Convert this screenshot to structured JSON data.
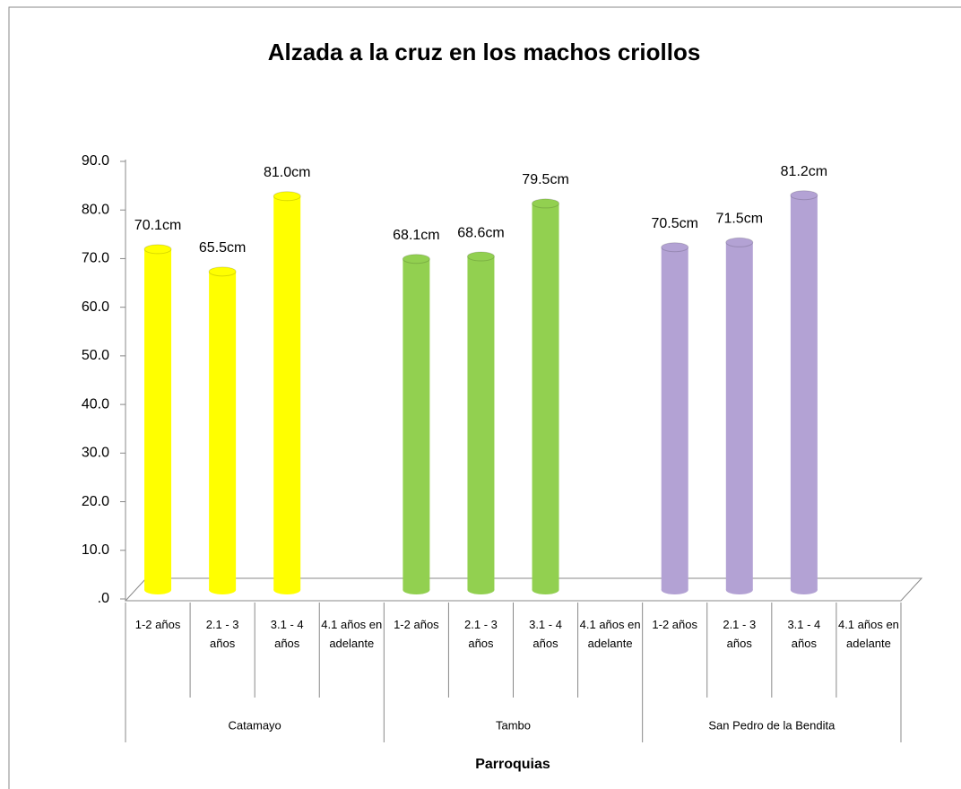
{
  "chart_data": {
    "type": "cylinder",
    "title": "Alzada a la cruz en los machos criollos",
    "x_label": "Parroquias",
    "categories": [
      "1-2 años",
      "2.1 - 3 años",
      "3.1 - 4 años",
      "4.1 años en adelante"
    ],
    "series": [
      {
        "name": "Catamayo",
        "color": "#ffff00",
        "values": [
          70.1,
          65.5,
          81.0,
          null
        ],
        "value_labels": [
          "70.1cm",
          "65.5cm",
          "81.0cm",
          null
        ]
      },
      {
        "name": "Tambo",
        "color": "#92d050",
        "values": [
          68.1,
          68.6,
          79.5,
          null
        ],
        "value_labels": [
          "68.1cm",
          "68.6cm",
          "79.5cm",
          null
        ]
      },
      {
        "name": "San Pedro de la Bendita",
        "color": "#b3a2d4",
        "values": [
          70.5,
          71.5,
          81.2,
          null
        ],
        "value_labels": [
          "70.5cm",
          "71.5cm",
          "81.2cm",
          null
        ]
      }
    ],
    "ylim": [
      0,
      90
    ],
    "yticks": [
      {
        "value": 0,
        "label": ".0"
      },
      {
        "value": 10,
        "label": "10.0"
      },
      {
        "value": 20,
        "label": "20.0"
      },
      {
        "value": 30,
        "label": "30.0"
      },
      {
        "value": 40,
        "label": "40.0"
      },
      {
        "value": 50,
        "label": "50.0"
      },
      {
        "value": 60,
        "label": "60.0"
      },
      {
        "value": 70,
        "label": "70.0"
      },
      {
        "value": 80,
        "label": "80.0"
      },
      {
        "value": 90,
        "label": "90.0"
      }
    ]
  }
}
